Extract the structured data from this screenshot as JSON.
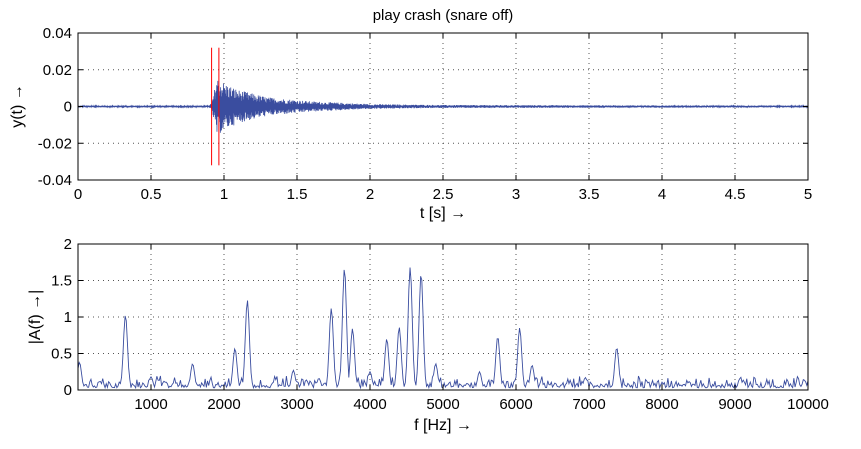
{
  "chart_data": [
    {
      "type": "line",
      "title": "play crash (snare off)",
      "xlabel": "t [s] →",
      "ylabel": "y(t) →",
      "xlim": [
        0,
        5
      ],
      "ylim": [
        -0.04,
        0.04
      ],
      "xticks": [
        0,
        0.5,
        1,
        1.5,
        2,
        2.5,
        3,
        3.5,
        4,
        4.5,
        5
      ],
      "xtick_labels": [
        "0",
        "0.5",
        "1",
        "1.5",
        "2",
        "2.5",
        "3",
        "3.5",
        "4",
        "4.5",
        "5"
      ],
      "yticks": [
        -0.04,
        -0.02,
        0,
        0.02,
        0.04
      ],
      "ytick_labels": [
        "-0.04",
        "-0.02",
        "0",
        "0.02",
        "0.04"
      ],
      "grid": true,
      "line_color": "#3a4d9f",
      "marker_color": "#ff0000",
      "envelope": [
        {
          "t": 0.0,
          "amp": 0.0005
        },
        {
          "t": 0.9,
          "amp": 0.0005
        },
        {
          "t": 0.92,
          "amp": 0.003
        },
        {
          "t": 0.95,
          "amp": 0.016
        },
        {
          "t": 1.0,
          "amp": 0.013
        },
        {
          "t": 1.1,
          "amp": 0.009
        },
        {
          "t": 1.3,
          "amp": 0.005
        },
        {
          "t": 1.6,
          "amp": 0.0028
        },
        {
          "t": 2.0,
          "amp": 0.0013
        },
        {
          "t": 2.5,
          "amp": 0.0008
        },
        {
          "t": 5.0,
          "amp": 0.0005
        }
      ],
      "vertical_markers": [
        {
          "x": 0.915,
          "y_min": -0.032,
          "y_max": 0.032
        },
        {
          "x": 0.965,
          "y_min": -0.032,
          "y_max": 0.032
        }
      ]
    },
    {
      "type": "line",
      "title": "",
      "xlabel": "f [Hz] →",
      "ylabel": "|A(f) →|",
      "xlim": [
        0,
        10000
      ],
      "ylim": [
        0,
        2
      ],
      "xticks": [
        1000,
        2000,
        3000,
        4000,
        5000,
        6000,
        7000,
        8000,
        9000,
        10000
      ],
      "xtick_labels": [
        "1000",
        "2000",
        "3000",
        "4000",
        "5000",
        "6000",
        "7000",
        "8000",
        "9000",
        "10000"
      ],
      "yticks": [
        0,
        0.5,
        1,
        1.5,
        2
      ],
      "ytick_labels": [
        "0",
        "0.5",
        "1",
        "1.5",
        "2"
      ],
      "grid": true,
      "line_color": "#3a4d9f",
      "peaks": [
        {
          "f": 20,
          "a": 0.38
        },
        {
          "f": 300,
          "a": 0.12
        },
        {
          "f": 650,
          "a": 1.03
        },
        {
          "f": 1000,
          "a": 0.18
        },
        {
          "f": 1180,
          "a": 0.12
        },
        {
          "f": 1570,
          "a": 0.36
        },
        {
          "f": 2150,
          "a": 0.57
        },
        {
          "f": 2320,
          "a": 1.23
        },
        {
          "f": 2700,
          "a": 0.15
        },
        {
          "f": 2950,
          "a": 0.27
        },
        {
          "f": 3300,
          "a": 0.16
        },
        {
          "f": 3470,
          "a": 1.12
        },
        {
          "f": 3650,
          "a": 1.67
        },
        {
          "f": 3760,
          "a": 0.84
        },
        {
          "f": 4000,
          "a": 0.25
        },
        {
          "f": 4230,
          "a": 0.7
        },
        {
          "f": 4400,
          "a": 0.86
        },
        {
          "f": 4550,
          "a": 1.68
        },
        {
          "f": 4700,
          "a": 1.6
        },
        {
          "f": 4900,
          "a": 0.36
        },
        {
          "f": 5500,
          "a": 0.25
        },
        {
          "f": 5750,
          "a": 0.73
        },
        {
          "f": 6050,
          "a": 0.85
        },
        {
          "f": 6220,
          "a": 0.34
        },
        {
          "f": 6950,
          "a": 0.17
        },
        {
          "f": 7380,
          "a": 0.58
        },
        {
          "f": 7800,
          "a": 0.1
        },
        {
          "f": 8300,
          "a": 0.08
        },
        {
          "f": 9100,
          "a": 0.06
        },
        {
          "f": 9900,
          "a": 0.05
        }
      ]
    }
  ]
}
